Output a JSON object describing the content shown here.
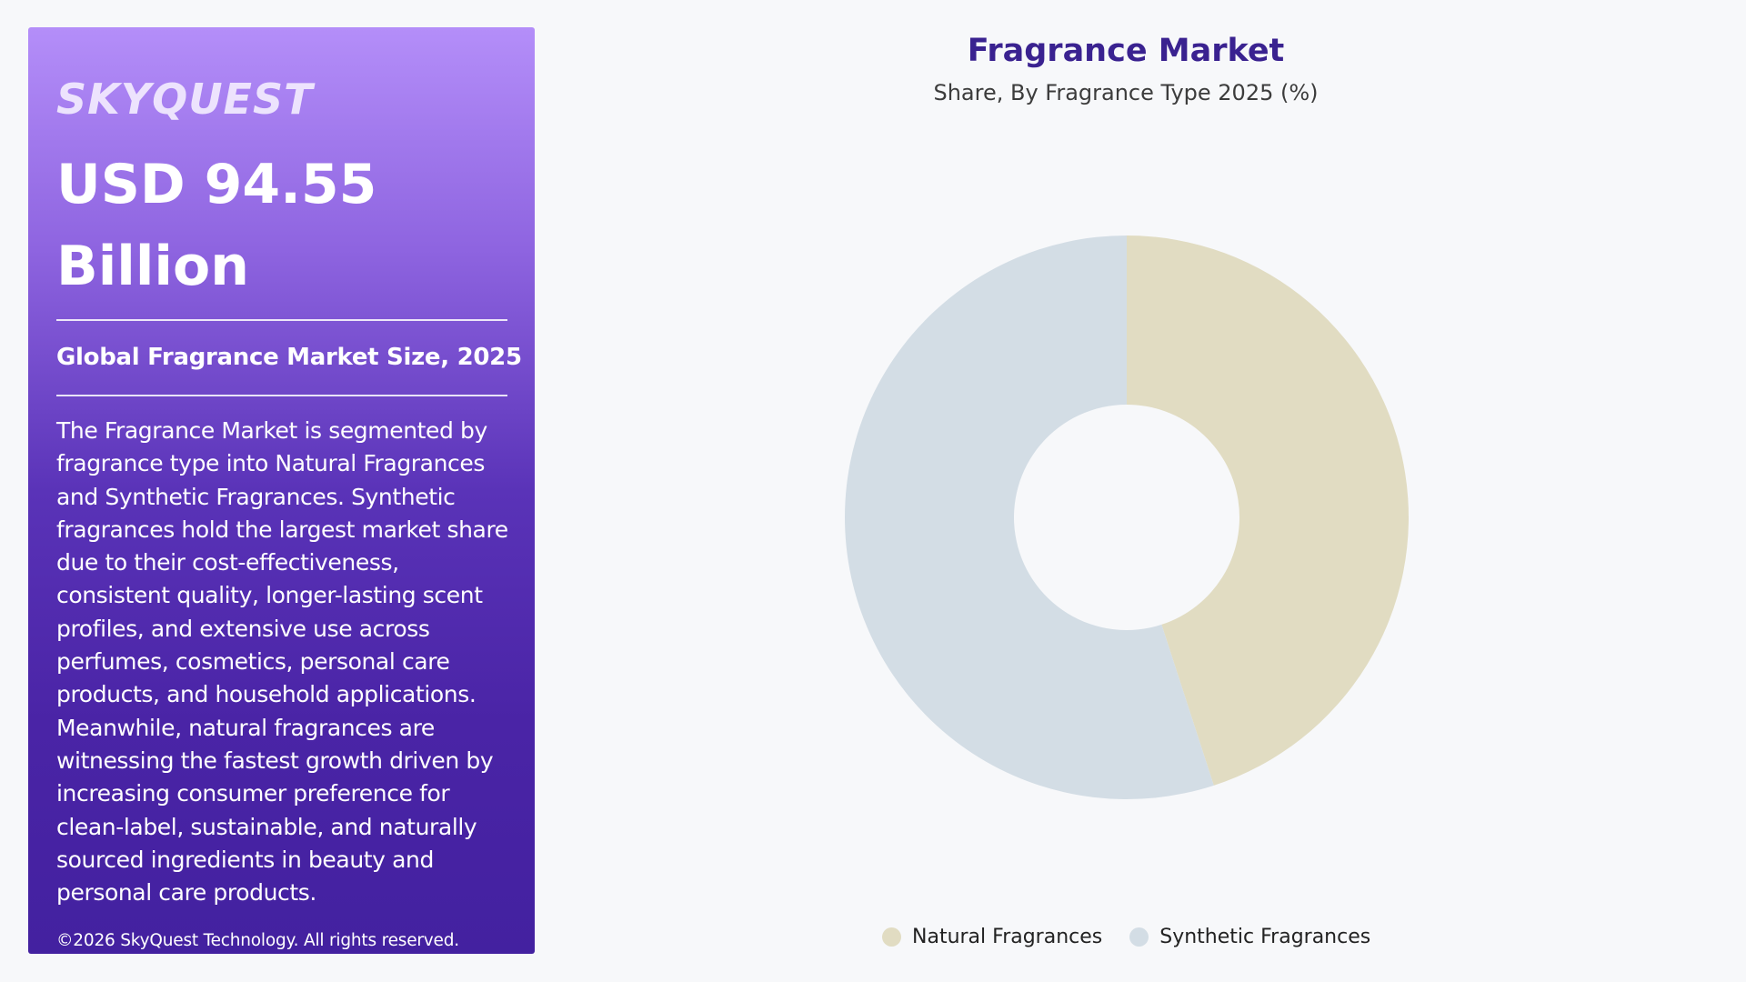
{
  "panel": {
    "brand": "SKYQUEST",
    "headline": "USD 94.55 Billion",
    "subhead": "Global Fragrance Market Size, 2025",
    "description": "The Fragrance Market is segmented by fragrance type into Natural Fragrances and Synthetic Fragrances. Synthetic fragrances hold the largest market share due to their cost-effectiveness, consistent quality, longer-lasting scent profiles, and extensive use across perfumes, cosmetics, personal care products, and household applications. Meanwhile, natural fragrances are witnessing the fastest growth driven by increasing consumer preference for clean-label, sustainable, and naturally sourced ingredients in beauty and personal care products.",
    "copyright": "©2026 SkyQuest Technology. All rights reserved."
  },
  "chart_data": {
    "type": "pie",
    "title": "Fragrance Market",
    "subtitle": "Share, By Fragrance Type 2025 (%)",
    "donut": true,
    "legend_position": "bottom",
    "slices": [
      {
        "name": "Natural Fragrances",
        "value": 45,
        "color": "#e1dcc2"
      },
      {
        "name": "Synthetic Fragrances",
        "value": 55,
        "color": "#d3dde5"
      }
    ]
  }
}
